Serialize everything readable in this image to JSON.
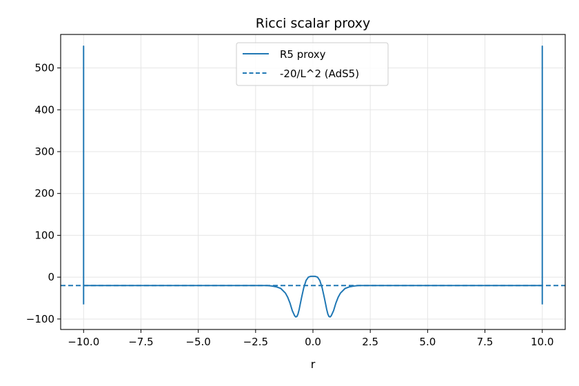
{
  "chart_data": {
    "type": "line",
    "title": "Ricci scalar proxy",
    "xlabel": "r",
    "ylabel": "",
    "xlim": [
      -11,
      11
    ],
    "ylim": [
      -125,
      580
    ],
    "xticks": [
      -10.0,
      -7.5,
      -5.0,
      -2.5,
      0.0,
      2.5,
      5.0,
      7.5,
      10.0
    ],
    "xtick_labels": [
      "−10.0",
      "−7.5",
      "−5.0",
      "−2.5",
      "0.0",
      "2.5",
      "5.0",
      "7.5",
      "10.0"
    ],
    "yticks": [
      -100,
      0,
      100,
      200,
      300,
      400,
      500
    ],
    "ytick_labels": [
      "−100",
      "0",
      "100",
      "200",
      "300",
      "400",
      "500"
    ],
    "grid": true,
    "legend_position": "top-center",
    "color": "#1f77b4",
    "series": [
      {
        "name": "R5 proxy",
        "style": "solid",
        "x": [
          -10.0,
          -10.0,
          -10.0,
          -9.98,
          -9.95,
          -8,
          -6,
          -4,
          -2.5,
          -2.0,
          -1.8,
          -1.6,
          -1.4,
          -1.2,
          -1.1,
          -1.0,
          -0.9,
          -0.8,
          -0.75,
          -0.7,
          -0.65,
          -0.6,
          -0.5,
          -0.4,
          -0.3,
          -0.2,
          -0.1,
          0.0,
          0.1,
          0.2,
          0.3,
          0.4,
          0.5,
          0.6,
          0.65,
          0.7,
          0.75,
          0.8,
          0.9,
          1.0,
          1.1,
          1.2,
          1.4,
          1.6,
          1.8,
          2.0,
          2.5,
          4,
          6,
          8,
          9.95,
          9.98,
          10.0,
          10.0,
          10.0
        ],
        "y": [
          -65,
          552,
          -20,
          -20,
          -20,
          -20,
          -20,
          -20,
          -20,
          -20,
          -21,
          -23,
          -27,
          -38,
          -48,
          -62,
          -80,
          -92,
          -95,
          -94,
          -88,
          -77,
          -50,
          -25,
          -8,
          0,
          2,
          2,
          2,
          0,
          -8,
          -25,
          -50,
          -77,
          -88,
          -94,
          -95,
          -92,
          -80,
          -62,
          -48,
          -38,
          -27,
          -23,
          -21,
          -20,
          -20,
          -20,
          -20,
          -20,
          -20,
          -20,
          -20,
          552,
          -65
        ]
      },
      {
        "name": "-20/L^2 (AdS5)",
        "style": "dashed",
        "x": [
          -11,
          11
        ],
        "y": [
          -20,
          -20
        ]
      }
    ]
  }
}
